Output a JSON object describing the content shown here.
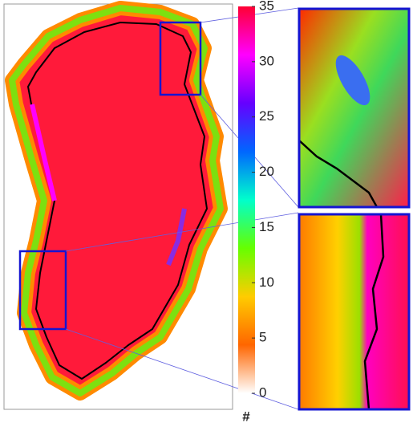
{
  "colorbar": {
    "range": [
      0,
      35
    ],
    "ticks": [
      0,
      5,
      10,
      15,
      20,
      25,
      30,
      35
    ],
    "label": "#",
    "colors": [
      "#ffffff",
      "#ff6600",
      "#ffcc00",
      "#66ff00",
      "#00ffcc",
      "#0066ff",
      "#6600ff",
      "#ff00ff",
      "#ff0033"
    ]
  }
}
